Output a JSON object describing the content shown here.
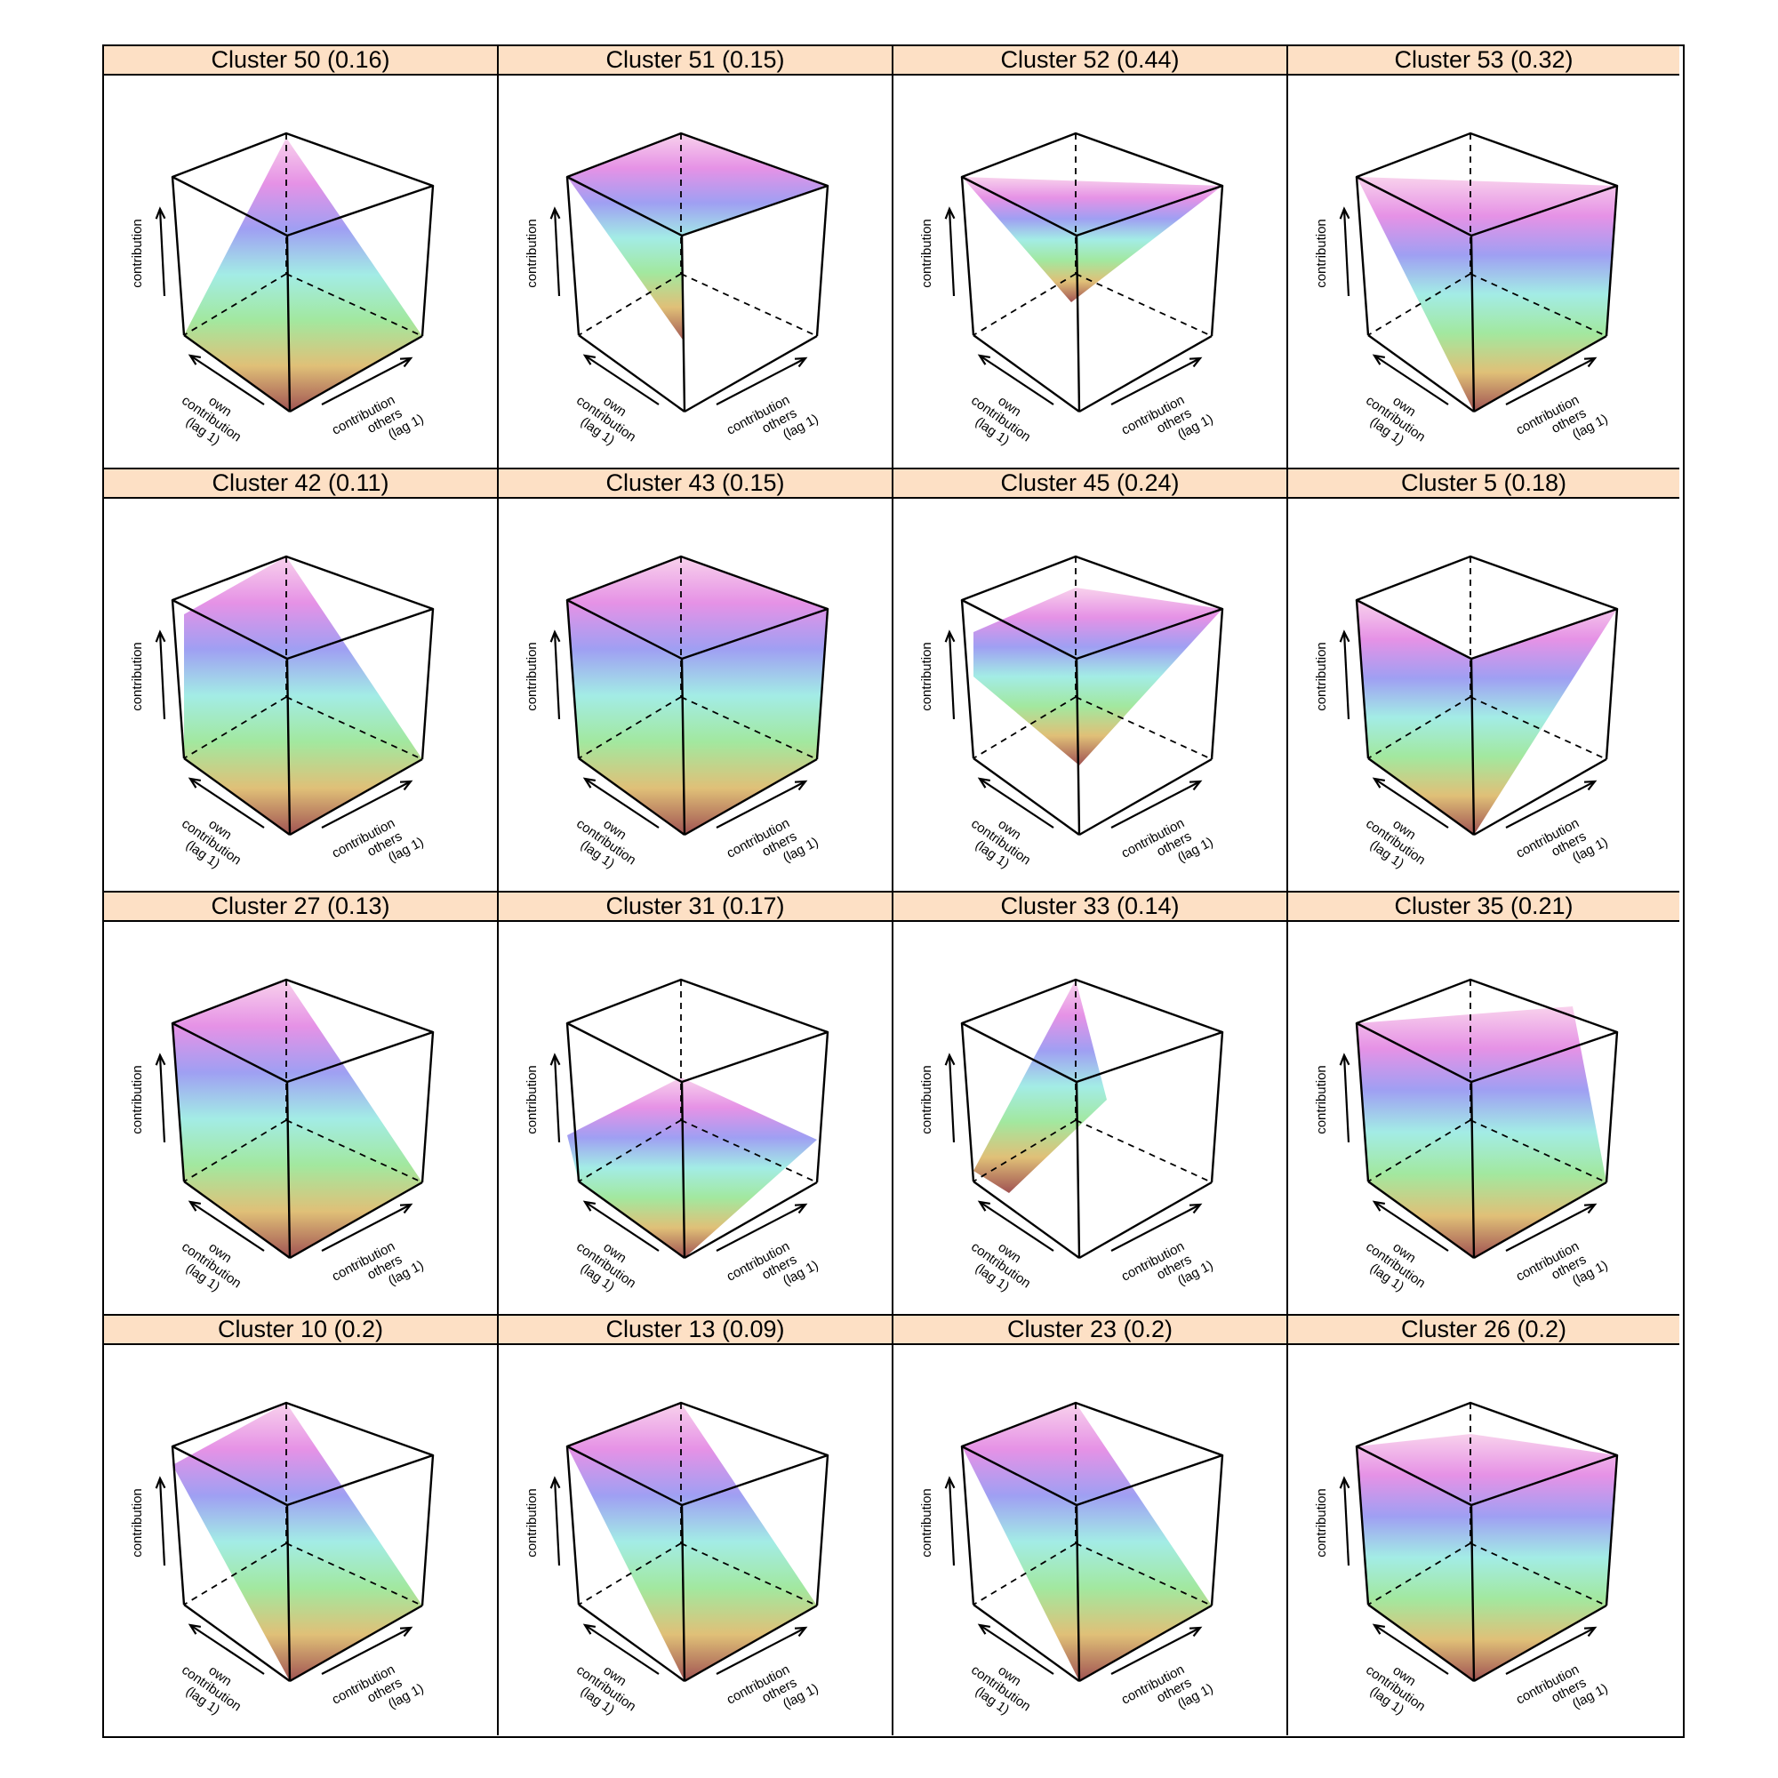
{
  "axis_labels": {
    "z": "contribution",
    "own": [
      "own",
      "contribution",
      "(lag 1)"
    ],
    "others": [
      "contribution",
      "others",
      "(lag 1)"
    ]
  },
  "colors": {
    "strip_background": "#fde0c5",
    "palette": [
      "#8b2c2c",
      "#d9b25a",
      "#8ee38a",
      "#8fe8e0",
      "#8a8af0",
      "#e07ae0",
      "#f7c8e8"
    ]
  },
  "chart_data": [
    {
      "type": "surface",
      "title": "Cluster 50 (0.16)",
      "cluster": 50,
      "value": 0.16,
      "shape": "pyramid peak at back corner"
    },
    {
      "type": "surface",
      "title": "Cluster 51 (0.15)",
      "cluster": 51,
      "value": 0.15,
      "shape": "flat high plane with sharp drop"
    },
    {
      "type": "surface",
      "title": "Cluster 52 (0.44)",
      "cluster": 52,
      "value": 0.44,
      "shape": "bowl with central spike"
    },
    {
      "type": "surface",
      "title": "Cluster 53 (0.32)",
      "cluster": 53,
      "value": 0.32,
      "shape": "concave sheet"
    },
    {
      "type": "surface",
      "title": "Cluster 42 (0.11)",
      "cluster": 42,
      "value": 0.11,
      "shape": "tilted ramp"
    },
    {
      "type": "surface",
      "title": "Cluster 43 (0.15)",
      "cluster": 43,
      "value": 0.15,
      "shape": "rounded dome"
    },
    {
      "type": "surface",
      "title": "Cluster 45 (0.24)",
      "cluster": 45,
      "value": 0.24,
      "shape": "plateau with sigmoid"
    },
    {
      "type": "surface",
      "title": "Cluster 5 (0.18)",
      "cluster": 5,
      "value": 0.18,
      "shape": "vertical wall with curved sheet"
    },
    {
      "type": "surface",
      "title": "Cluster 27 (0.13)",
      "cluster": 27,
      "value": 0.13,
      "shape": "convex decreasing sheet"
    },
    {
      "type": "surface",
      "title": "Cluster 31 (0.17)",
      "cluster": 31,
      "value": 0.17,
      "shape": "mid-height plateau"
    },
    {
      "type": "surface",
      "title": "Cluster 33 (0.14)",
      "cluster": 33,
      "value": 0.14,
      "shape": "diagonal ridge"
    },
    {
      "type": "surface",
      "title": "Cluster 35 (0.21)",
      "cluster": 35,
      "value": 0.21,
      "shape": "concave sheet"
    },
    {
      "type": "surface",
      "title": "Cluster 10 (0.2)",
      "cluster": 10,
      "value": 0.2,
      "shape": "diagonal plane"
    },
    {
      "type": "surface",
      "title": "Cluster 13 (0.09)",
      "cluster": 13,
      "value": 0.09,
      "shape": "smooth ramp"
    },
    {
      "type": "surface",
      "title": "Cluster 23 (0.2)",
      "cluster": 23,
      "value": 0.2,
      "shape": "smooth ramp"
    },
    {
      "type": "surface",
      "title": "Cluster 26 (0.2)",
      "cluster": 26,
      "value": 0.2,
      "shape": "rounded dome"
    }
  ]
}
